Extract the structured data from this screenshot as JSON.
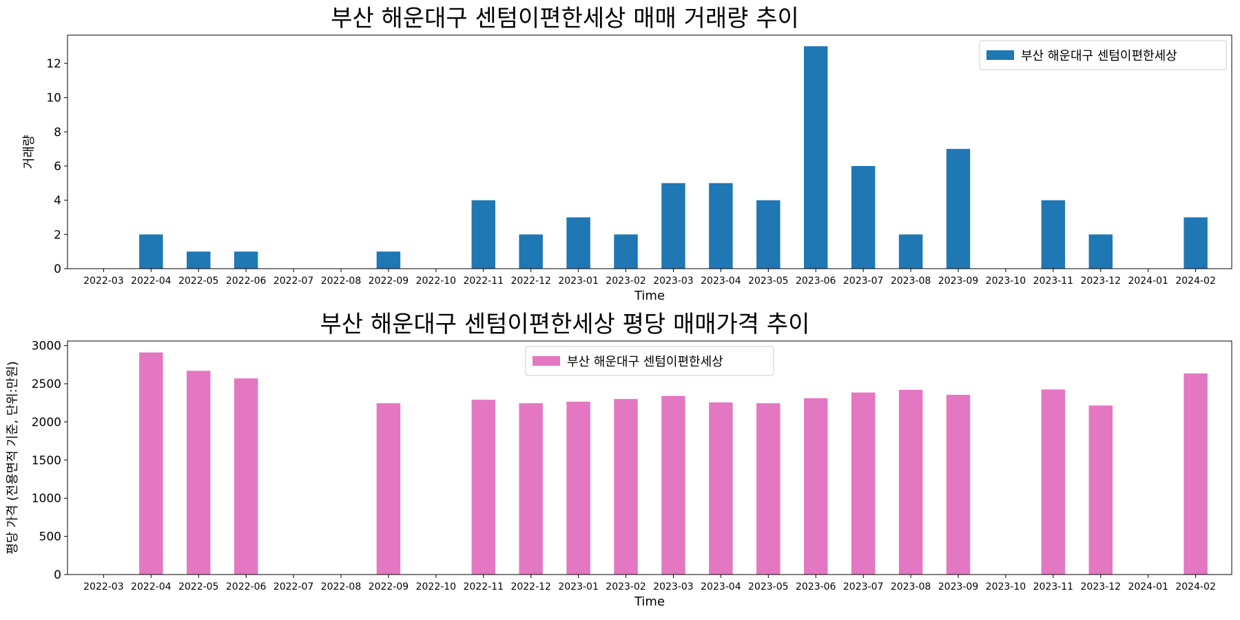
{
  "chart_data": [
    {
      "type": "bar",
      "title": "부산 해운대구 센텀이편한세상 매매 거래량 추이",
      "xlabel": "Time",
      "ylabel": "거래량",
      "ylim": [
        0,
        13.65
      ],
      "yticks": [
        0,
        2,
        4,
        6,
        8,
        10,
        12
      ],
      "legend_position": "upper right",
      "grid": false,
      "categories": [
        "2022-03",
        "2022-04",
        "2022-05",
        "2022-06",
        "2022-07",
        "2022-08",
        "2022-09",
        "2022-10",
        "2022-11",
        "2022-12",
        "2023-01",
        "2023-02",
        "2023-03",
        "2023-04",
        "2023-05",
        "2023-06",
        "2023-07",
        "2023-08",
        "2023-09",
        "2023-10",
        "2023-11",
        "2023-12",
        "2024-01",
        "2024-02"
      ],
      "series": [
        {
          "name": "부산 해운대구 센텀이편한세상",
          "color": "#1f77b4",
          "values": [
            0,
            2,
            1,
            1,
            0,
            0,
            1,
            0,
            4,
            2,
            3,
            2,
            5,
            5,
            4,
            13,
            6,
            2,
            7,
            0,
            4,
            2,
            0,
            3
          ]
        }
      ]
    },
    {
      "type": "bar",
      "title": "부산 해운대구 센텀이편한세상 평당 매매가격 추이",
      "xlabel": "Time",
      "ylabel": "평당 가격 (전용면적 기준, 단위:만원)",
      "ylim": [
        0,
        3060
      ],
      "yticks": [
        0,
        500,
        1000,
        1500,
        2000,
        2500,
        3000
      ],
      "legend_position": "upper center",
      "grid": false,
      "categories": [
        "2022-03",
        "2022-04",
        "2022-05",
        "2022-06",
        "2022-07",
        "2022-08",
        "2022-09",
        "2022-10",
        "2022-11",
        "2022-12",
        "2023-01",
        "2023-02",
        "2023-03",
        "2023-04",
        "2023-05",
        "2023-06",
        "2023-07",
        "2023-08",
        "2023-09",
        "2023-10",
        "2023-11",
        "2023-12",
        "2024-01",
        "2024-02"
      ],
      "series": [
        {
          "name": "부산 해운대구 센텀이편한세상",
          "color": "#e377c2",
          "values": [
            0,
            2910,
            2670,
            2570,
            0,
            0,
            2245,
            0,
            2290,
            2245,
            2265,
            2300,
            2340,
            2255,
            2245,
            2310,
            2385,
            2420,
            2355,
            0,
            2425,
            2215,
            0,
            2635
          ]
        }
      ]
    }
  ]
}
